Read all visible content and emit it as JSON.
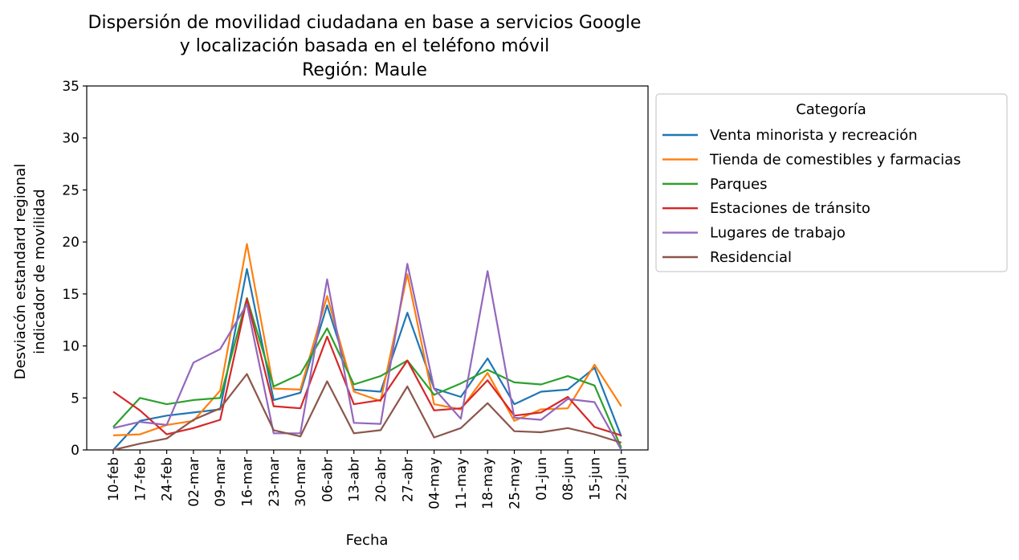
{
  "chart_data": {
    "type": "line",
    "title_lines": [
      "Dispersión de movilidad ciudadana en base a servicios Google",
      "y localización basada en el teléfono móvil",
      "Región: Maule"
    ],
    "xlabel": "Fecha",
    "ylabel_lines": [
      "Desviacón estandard regional",
      "indicador de movilidad"
    ],
    "ylim": [
      0,
      35
    ],
    "yticks": [
      "0",
      "5",
      "10",
      "15",
      "20",
      "25",
      "30",
      "35"
    ],
    "categories": [
      "10-feb",
      "17-feb",
      "24-feb",
      "02-mar",
      "09-mar",
      "16-mar",
      "23-mar",
      "30-mar",
      "06-abr",
      "13-abr",
      "20-abr",
      "27-abr",
      "04-may",
      "11-may",
      "18-may",
      "25-may",
      "01-jun",
      "08-jun",
      "15-jun",
      "22-jun"
    ],
    "legend": {
      "title": "Categoría",
      "placement": "outside-right-top"
    },
    "grid": false,
    "series": [
      {
        "name": "Venta minorista y recreación",
        "color": "#1f77b4",
        "values": [
          0.0,
          2.8,
          3.3,
          3.6,
          3.9,
          17.4,
          4.8,
          5.5,
          13.9,
          5.8,
          5.6,
          13.2,
          5.9,
          5.1,
          8.8,
          4.4,
          5.6,
          5.8,
          7.9,
          1.3
        ]
      },
      {
        "name": "Tienda de comestibles y farmacias",
        "color": "#ff7f0e",
        "values": [
          1.4,
          1.5,
          2.4,
          2.8,
          5.7,
          19.8,
          5.9,
          5.8,
          14.8,
          5.6,
          4.7,
          16.9,
          4.4,
          3.9,
          7.4,
          2.8,
          3.9,
          4.0,
          8.2,
          4.2
        ]
      },
      {
        "name": "Parques",
        "color": "#2ca02c",
        "values": [
          2.2,
          5.0,
          4.4,
          4.8,
          5.0,
          14.6,
          6.1,
          7.3,
          11.7,
          6.3,
          7.1,
          8.6,
          5.3,
          6.4,
          7.7,
          6.5,
          6.3,
          7.1,
          6.2,
          0.2
        ]
      },
      {
        "name": "Estaciones de tránsito",
        "color": "#d62728",
        "values": [
          5.6,
          3.8,
          1.5,
          2.1,
          2.9,
          14.5,
          4.2,
          4.0,
          10.9,
          4.4,
          4.8,
          8.6,
          3.8,
          4.0,
          6.7,
          3.3,
          3.6,
          5.1,
          2.2,
          1.4
        ]
      },
      {
        "name": "Lugares de trabajo",
        "color": "#9467bd",
        "values": [
          2.1,
          2.7,
          2.4,
          8.4,
          9.7,
          14.0,
          1.6,
          1.6,
          16.4,
          2.6,
          2.5,
          17.9,
          5.9,
          3.0,
          17.2,
          3.1,
          2.9,
          4.9,
          4.6,
          0.0
        ]
      },
      {
        "name": "Residencial",
        "color": "#8c564b",
        "values": [
          0.0,
          0.6,
          1.1,
          2.9,
          4.0,
          7.3,
          1.9,
          1.3,
          6.6,
          1.6,
          1.9,
          6.1,
          1.2,
          2.1,
          4.5,
          1.8,
          1.7,
          2.1,
          1.5,
          0.7
        ]
      }
    ]
  }
}
